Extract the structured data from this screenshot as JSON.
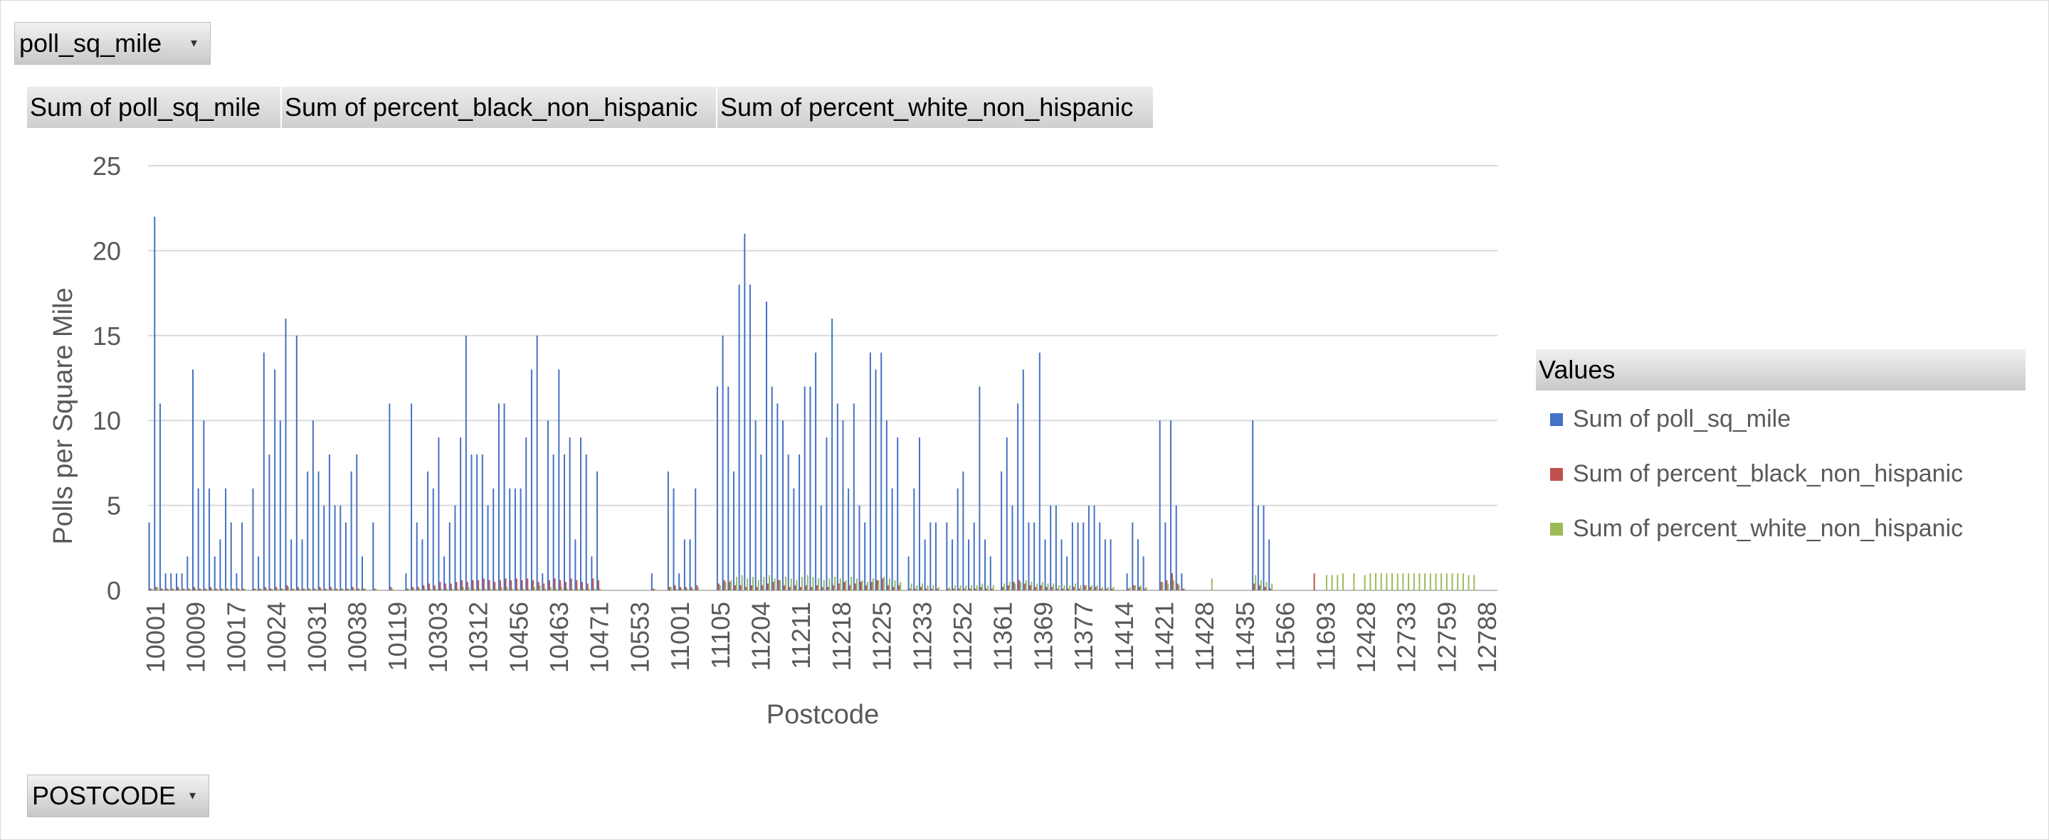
{
  "filter_field": {
    "label": "poll_sq_mile",
    "arrow": "▾"
  },
  "row_field": {
    "label": "POSTCODE",
    "arrow": "▾"
  },
  "value_headers": [
    "Sum of poll_sq_mile",
    "Sum of percent_black_non_hispanic",
    "Sum of percent_white_non_hispanic"
  ],
  "legend": {
    "title": "Values",
    "items": [
      {
        "label": "Sum of poll_sq_mile",
        "color": "#4472c4"
      },
      {
        "label": "Sum of percent_black_non_hispanic",
        "color": "#c0504d"
      },
      {
        "label": "Sum of percent_white_non_hispanic",
        "color": "#9bbb59"
      }
    ]
  },
  "chart_data": {
    "type": "bar",
    "xlabel": "Postcode",
    "ylabel": "Polls per Square Mile",
    "ylim": [
      0,
      25
    ],
    "yticks": [
      0,
      5,
      10,
      15,
      20,
      25
    ],
    "grid": true,
    "legend_position": "right",
    "x_tick_labels": [
      "10001",
      "10009",
      "10017",
      "10024",
      "10031",
      "10038",
      "10119",
      "10303",
      "10312",
      "10456",
      "10463",
      "10471",
      "10553",
      "11001",
      "11105",
      "11204",
      "11211",
      "11218",
      "11225",
      "11233",
      "11252",
      "11361",
      "11369",
      "11377",
      "11414",
      "11421",
      "11428",
      "11435",
      "11566",
      "11693",
      "12428",
      "12733",
      "12759",
      "12788"
    ],
    "series": [
      {
        "name": "Sum of poll_sq_mile",
        "color": "#4472c4",
        "values": [
          4,
          22,
          11,
          1,
          1,
          1,
          1,
          2,
          13,
          6,
          10,
          6,
          2,
          3,
          6,
          4,
          1,
          4,
          0,
          6,
          2,
          14,
          8,
          13,
          10,
          16,
          3,
          15,
          3,
          7,
          10,
          7,
          5,
          8,
          5,
          5,
          4,
          7,
          8,
          2,
          0,
          4,
          0,
          0,
          11,
          0,
          0,
          1,
          11,
          4,
          3,
          7,
          6,
          9,
          2,
          4,
          5,
          9,
          15,
          8,
          8,
          8,
          5,
          6,
          11,
          11,
          6,
          6,
          6,
          9,
          13,
          15,
          1,
          10,
          8,
          13,
          8,
          9,
          3,
          9,
          8,
          2,
          7,
          0,
          0,
          0,
          0,
          0,
          0,
          0,
          0,
          0,
          1,
          0,
          0,
          7,
          6,
          1,
          3,
          3,
          6,
          0,
          0,
          0,
          12,
          15,
          12,
          7,
          18,
          21,
          18,
          10,
          8,
          17,
          12,
          11,
          10,
          8,
          6,
          8,
          12,
          12,
          14,
          5,
          9,
          16,
          11,
          10,
          6,
          11,
          5,
          4,
          14,
          13,
          14,
          10,
          6,
          9,
          0,
          2,
          6,
          9,
          3,
          4,
          4,
          0,
          4,
          3,
          6,
          7,
          3,
          4,
          12,
          3,
          2,
          0,
          7,
          9,
          5,
          11,
          13,
          4,
          4,
          14,
          3,
          5,
          5,
          3,
          2,
          4,
          4,
          4,
          5,
          5,
          4,
          3,
          3,
          0,
          0,
          1,
          4,
          3,
          2,
          0,
          0,
          10,
          4,
          10,
          5,
          1,
          0,
          0,
          0,
          0,
          0,
          0,
          0,
          0,
          0,
          0,
          0,
          0,
          10,
          5,
          5,
          3,
          0,
          0,
          0,
          0,
          0,
          0,
          0,
          0,
          0,
          0,
          0,
          0,
          0,
          0,
          0,
          0,
          0,
          0,
          0,
          0,
          0,
          0,
          0,
          0,
          0,
          0,
          0,
          0,
          0,
          0,
          0,
          0,
          0,
          0,
          0,
          0,
          0,
          0,
          0,
          0,
          0
        ]
      },
      {
        "name": "Sum of percent_black_non_hispanic",
        "color": "#c0504d",
        "values": [
          0.1,
          0.2,
          0.1,
          0.1,
          0.1,
          0.2,
          0.1,
          0.1,
          0.2,
          0.1,
          0.1,
          0.2,
          0.1,
          0.1,
          0.1,
          0.1,
          0.1,
          0.1,
          0,
          0.1,
          0.1,
          0.2,
          0.1,
          0.2,
          0.1,
          0.3,
          0.1,
          0.2,
          0.1,
          0.1,
          0.1,
          0.2,
          0.1,
          0.2,
          0.1,
          0.1,
          0.1,
          0.2,
          0.1,
          0.1,
          0,
          0.1,
          0,
          0,
          0.2,
          0,
          0,
          0.1,
          0.2,
          0.2,
          0.3,
          0.4,
          0.3,
          0.5,
          0.4,
          0.4,
          0.5,
          0.6,
          0.5,
          0.6,
          0.6,
          0.7,
          0.6,
          0.5,
          0.6,
          0.7,
          0.6,
          0.7,
          0.6,
          0.7,
          0.6,
          0.5,
          0.4,
          0.6,
          0.7,
          0.6,
          0.5,
          0.7,
          0.6,
          0.5,
          0.4,
          0.7,
          0.6,
          0,
          0,
          0,
          0,
          0,
          0,
          0,
          0,
          0,
          0.1,
          0,
          0,
          0.2,
          0.3,
          0.2,
          0.2,
          0.2,
          0.3,
          0,
          0,
          0,
          0.4,
          0.6,
          0.5,
          0.3,
          0.3,
          0.2,
          0.3,
          0.2,
          0.3,
          0.4,
          0.5,
          0.6,
          0.3,
          0.2,
          0.3,
          0.2,
          0.3,
          0.2,
          0.3,
          0.2,
          0.2,
          0.3,
          0.4,
          0.5,
          0.3,
          0.4,
          0.5,
          0.3,
          0.5,
          0.6,
          0.7,
          0.3,
          0.2,
          0.3,
          0,
          0.1,
          0.1,
          0.2,
          0.1,
          0.1,
          0.1,
          0,
          0.1,
          0.1,
          0.1,
          0.1,
          0.1,
          0.1,
          0.2,
          0.1,
          0.1,
          0,
          0.2,
          0.3,
          0.5,
          0.6,
          0.4,
          0.3,
          0.2,
          0.3,
          0.2,
          0.2,
          0.1,
          0.1,
          0.1,
          0.2,
          0.1,
          0.3,
          0.2,
          0.2,
          0.1,
          0.1,
          0.1,
          0,
          0,
          0.1,
          0.3,
          0.2,
          0.1,
          0,
          0,
          0.5,
          0.6,
          1,
          0.4,
          0.1,
          0,
          0,
          0,
          0,
          0,
          0,
          0,
          0,
          0,
          0,
          0,
          0,
          0.4,
          0.3,
          0.2,
          0.1,
          0,
          0,
          0,
          0,
          0,
          0,
          0,
          1,
          0,
          0,
          0,
          0,
          0,
          0,
          0,
          0,
          0,
          0,
          0,
          0,
          0,
          0,
          0,
          0,
          0,
          0,
          0,
          0,
          0,
          0,
          0,
          0,
          0,
          0,
          0,
          0,
          0
        ]
      },
      {
        "name": "Sum of percent_white_non_hispanic",
        "color": "#9bbb59",
        "values": [
          0.1,
          0.2,
          0.1,
          0.1,
          0.1,
          0.1,
          0.1,
          0.1,
          0.1,
          0.1,
          0.1,
          0.1,
          0.1,
          0.1,
          0.1,
          0.1,
          0.1,
          0.1,
          0,
          0.1,
          0.1,
          0.1,
          0.1,
          0.1,
          0.1,
          0.2,
          0.1,
          0.1,
          0.1,
          0.1,
          0.1,
          0.1,
          0.1,
          0.1,
          0.1,
          0.1,
          0.1,
          0.1,
          0.1,
          0.1,
          0,
          0.1,
          0,
          0,
          0.1,
          0,
          0,
          0.1,
          0.1,
          0.1,
          0.1,
          0.1,
          0.1,
          0.1,
          0.1,
          0.1,
          0.1,
          0.2,
          0.2,
          0.1,
          0.1,
          0.1,
          0.1,
          0.1,
          0.2,
          0.2,
          0.1,
          0.1,
          0.1,
          0.1,
          0.2,
          0.3,
          0.1,
          0.2,
          0.1,
          0.2,
          0.1,
          0.1,
          0.1,
          0.1,
          0.1,
          0.1,
          0.1,
          0,
          0,
          0,
          0,
          0,
          0,
          0,
          0,
          0,
          0.1,
          0,
          0,
          0.2,
          0.1,
          0.1,
          0.1,
          0.1,
          0.2,
          0,
          0,
          0,
          0.3,
          0.5,
          0.6,
          0.8,
          0.9,
          0.7,
          0.8,
          0.6,
          0.8,
          0.9,
          0.7,
          0.6,
          0.8,
          0.7,
          0.6,
          0.8,
          0.9,
          0.8,
          0.7,
          0.6,
          0.7,
          0.8,
          0.7,
          0.6,
          0.8,
          0.7,
          0.6,
          0.5,
          0.7,
          0.6,
          0.8,
          0.7,
          0.6,
          0.5,
          0,
          0.4,
          0.3,
          0.4,
          0.3,
          0.3,
          0.2,
          0,
          0.2,
          0.3,
          0.3,
          0.3,
          0.3,
          0.3,
          0.4,
          0.3,
          0.3,
          0,
          0.4,
          0.5,
          0.4,
          0.5,
          0.6,
          0.5,
          0.4,
          0.5,
          0.4,
          0.4,
          0.3,
          0.3,
          0.3,
          0.4,
          0.3,
          0.3,
          0.3,
          0.3,
          0.2,
          0.2,
          0.2,
          0,
          0,
          0.2,
          0.3,
          0.3,
          0.2,
          0,
          0,
          0.5,
          0.4,
          0.6,
          0.3,
          0.1,
          0,
          0,
          0,
          0,
          0.7,
          0,
          0,
          0,
          0,
          0,
          0,
          0,
          0.9,
          0.6,
          0.5,
          0.4,
          0,
          0,
          0,
          0,
          0,
          0,
          0,
          0,
          0,
          0.9,
          0.9,
          0.9,
          1,
          0,
          1,
          0,
          0.9,
          1,
          1,
          1,
          1,
          1,
          1,
          1,
          1,
          1,
          1,
          1,
          1,
          1,
          1,
          1,
          1,
          1,
          1,
          0.9,
          0.9
        ]
      }
    ]
  }
}
